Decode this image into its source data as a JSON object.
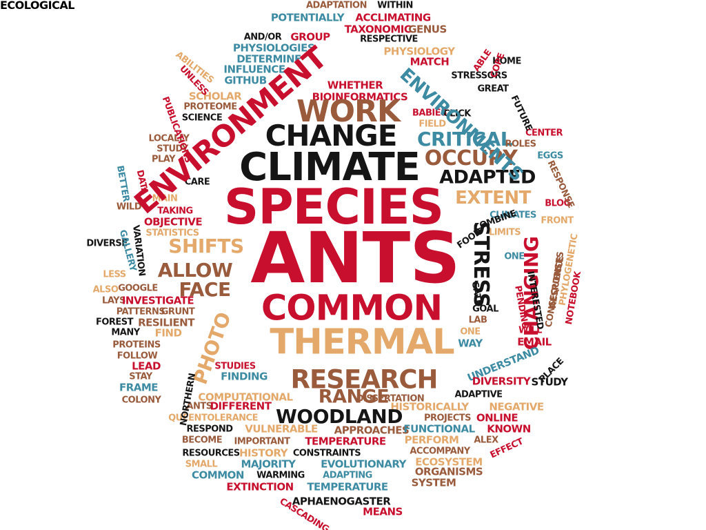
{
  "palette": {
    "red": "#c8102e",
    "black": "#151515",
    "brown": "#9a5a3c",
    "tan": "#e3a86a",
    "teal": "#3d8ba3"
  },
  "words": [
    {
      "text": "ADAPTATION",
      "color": "brown"
    },
    {
      "text": "WITHIN",
      "color": "black"
    },
    {
      "text": "POTENTIALLY",
      "color": "teal"
    },
    {
      "text": "ACCLIMATING",
      "color": "red"
    },
    {
      "text": "TAXONOMIC",
      "color": "red"
    },
    {
      "text": "GENUS",
      "color": "brown"
    },
    {
      "text": "AND/OR",
      "color": "black"
    },
    {
      "text": "GROUP",
      "color": "red"
    },
    {
      "text": "RESPECTIVE",
      "color": "black"
    },
    {
      "text": "PHYSIOLOGIES",
      "color": "teal"
    },
    {
      "text": "PHYSIOLOGY",
      "color": "tan"
    },
    {
      "text": "DETERMINE",
      "color": "teal"
    },
    {
      "text": "MATCH",
      "color": "red"
    },
    {
      "text": "HOME",
      "color": "black"
    },
    {
      "text": "INFLUENCE",
      "color": "teal"
    },
    {
      "text": "GITHUB",
      "color": "teal"
    },
    {
      "text": "STRESSORS",
      "color": "black"
    },
    {
      "text": "WHETHER",
      "color": "red"
    },
    {
      "text": "GREAT",
      "color": "black"
    },
    {
      "text": "SCHOLAR",
      "color": "tan"
    },
    {
      "text": "BIOINFORMATICS",
      "color": "red"
    },
    {
      "text": "PROTEOME",
      "color": "brown"
    },
    {
      "text": "WORK",
      "color": "brown"
    },
    {
      "text": "BABIES",
      "color": "red"
    },
    {
      "text": "CLICK",
      "color": "black"
    },
    {
      "text": "FIELD",
      "color": "tan"
    },
    {
      "text": "SCIENCE",
      "color": "black"
    },
    {
      "text": "LOCALLY",
      "color": "brown"
    },
    {
      "text": "CHANGE",
      "color": "black"
    },
    {
      "text": "CRITICAL",
      "color": "teal"
    },
    {
      "text": "CENTER",
      "color": "red"
    },
    {
      "text": "STUDY",
      "color": "brown"
    },
    {
      "text": "ROLES",
      "color": "brown"
    },
    {
      "text": "PLAY",
      "color": "brown"
    },
    {
      "text": "OCCUPY",
      "color": "brown"
    },
    {
      "text": "EGGS",
      "color": "teal"
    },
    {
      "text": "CLIMATE",
      "color": "black"
    },
    {
      "text": "ADAPTED",
      "color": "black"
    },
    {
      "text": "CARE",
      "color": "black"
    },
    {
      "text": "EXTENT",
      "color": "tan"
    },
    {
      "text": "MAIN",
      "color": "tan"
    },
    {
      "text": "BLOG",
      "color": "red"
    },
    {
      "text": "WILD",
      "color": "brown"
    },
    {
      "text": "SPECIES",
      "color": "red"
    },
    {
      "text": "TAKING",
      "color": "red"
    },
    {
      "text": "CLIMATES",
      "color": "teal"
    },
    {
      "text": "FRONT",
      "color": "tan"
    },
    {
      "text": "OBJECTIVE",
      "color": "red"
    },
    {
      "text": "COMBINE",
      "color": "black"
    },
    {
      "text": "LIMITS",
      "color": "tan"
    },
    {
      "text": "STATISTICS",
      "color": "tan"
    },
    {
      "text": "DIVERSE",
      "color": "black"
    },
    {
      "text": "FOOD",
      "color": "black"
    },
    {
      "text": "SHIFTS",
      "color": "tan"
    },
    {
      "text": "ANTS",
      "color": "red"
    },
    {
      "text": "STRESS",
      "color": "black"
    },
    {
      "text": "ONE",
      "color": "teal"
    },
    {
      "text": "ALLOW",
      "color": "brown"
    },
    {
      "text": "LESS",
      "color": "tan"
    },
    {
      "text": "GOOGLE",
      "color": "brown"
    },
    {
      "text": "ALSO",
      "color": "tan"
    },
    {
      "text": "FACE",
      "color": "brown"
    },
    {
      "text": "CHANGING",
      "color": "red"
    },
    {
      "text": "LAYS",
      "color": "brown"
    },
    {
      "text": "INVESTIGATE",
      "color": "red"
    },
    {
      "text": "COMMON",
      "color": "red"
    },
    {
      "text": "PATTERNS",
      "color": "brown"
    },
    {
      "text": "GRUNT",
      "color": "brown"
    },
    {
      "text": "GOAL",
      "color": "black"
    },
    {
      "text": "FOREST",
      "color": "black"
    },
    {
      "text": "RESILIENT",
      "color": "brown"
    },
    {
      "text": "LAB",
      "color": "brown"
    },
    {
      "text": "MANY",
      "color": "black"
    },
    {
      "text": "FIND",
      "color": "tan"
    },
    {
      "text": "ONE",
      "color": "tan"
    },
    {
      "text": "WILL",
      "color": "red"
    },
    {
      "text": "THERMAL",
      "color": "tan"
    },
    {
      "text": "WAY",
      "color": "teal"
    },
    {
      "text": "EMAIL",
      "color": "red"
    },
    {
      "text": "PROTEINS",
      "color": "brown"
    },
    {
      "text": "FOLLOW",
      "color": "brown"
    },
    {
      "text": "LEAD",
      "color": "red"
    },
    {
      "text": "STUDIES",
      "color": "red"
    },
    {
      "text": "UNDERSTAND",
      "color": "teal"
    },
    {
      "text": "PLACE",
      "color": "black"
    },
    {
      "text": "STAY",
      "color": "brown"
    },
    {
      "text": "FINDING",
      "color": "teal"
    },
    {
      "text": "RESEARCH",
      "color": "brown"
    },
    {
      "text": "DIVERSITY",
      "color": "red"
    },
    {
      "text": "STUDY",
      "color": "black"
    },
    {
      "text": "FRAME",
      "color": "teal"
    },
    {
      "text": "COMPUTATIONAL",
      "color": "tan"
    },
    {
      "text": "RANGE",
      "color": "brown"
    },
    {
      "text": "DISSERTATION",
      "color": "brown"
    },
    {
      "text": "ADAPTIVE",
      "color": "black"
    },
    {
      "text": "COLONY",
      "color": "brown"
    },
    {
      "text": "ANTS",
      "color": "brown"
    },
    {
      "text": "DIFFERENT",
      "color": "red"
    },
    {
      "text": "HISTORICALLY",
      "color": "tan"
    },
    {
      "text": "NEGATIVE",
      "color": "tan"
    },
    {
      "text": "WOODLAND",
      "color": "black"
    },
    {
      "text": "QUEEN",
      "color": "tan"
    },
    {
      "text": "TOLERANCE",
      "color": "tan"
    },
    {
      "text": "PROJECTS",
      "color": "brown"
    },
    {
      "text": "ONLINE",
      "color": "red"
    },
    {
      "text": "RESPOND",
      "color": "black"
    },
    {
      "text": "VULNERABLE",
      "color": "tan"
    },
    {
      "text": "APPROACHES",
      "color": "brown"
    },
    {
      "text": "FUNCTIONAL",
      "color": "teal"
    },
    {
      "text": "KNOWN",
      "color": "red"
    },
    {
      "text": "BECOME",
      "color": "brown"
    },
    {
      "text": "PERFORM",
      "color": "tan"
    },
    {
      "text": "ALEX",
      "color": "brown"
    },
    {
      "text": "IMPORTANT",
      "color": "brown"
    },
    {
      "text": "TEMPERATURE",
      "color": "red"
    },
    {
      "text": "ACCOMPANY",
      "color": "brown"
    },
    {
      "text": "RESOURCES",
      "color": "black"
    },
    {
      "text": "HISTORY",
      "color": "tan"
    },
    {
      "text": "CONSTRAINTS",
      "color": "black"
    },
    {
      "text": "ECOSYSTEM",
      "color": "tan"
    },
    {
      "text": "SMALL",
      "color": "tan"
    },
    {
      "text": "MAJORITY",
      "color": "teal"
    },
    {
      "text": "EVOLUTIONARY",
      "color": "teal"
    },
    {
      "text": "ORGANISMS",
      "color": "brown"
    },
    {
      "text": "COMMON",
      "color": "teal"
    },
    {
      "text": "WARMING",
      "color": "black"
    },
    {
      "text": "ADAPTING",
      "color": "teal"
    },
    {
      "text": "SYSTEM",
      "color": "brown"
    },
    {
      "text": "EXTINCTION",
      "color": "red"
    },
    {
      "text": "TEMPERATURE",
      "color": "teal"
    },
    {
      "text": "APHAENOGASTER",
      "color": "black"
    },
    {
      "text": "MEANS",
      "color": "red"
    },
    {
      "text": "EFFECT",
      "color": "red"
    },
    {
      "text": "ENVIRONMENT",
      "color": "red"
    },
    {
      "text": "ENVIRONMENTS",
      "color": "teal"
    },
    {
      "text": "ABILITIES",
      "color": "tan"
    },
    {
      "text": "UNLESS",
      "color": "red"
    },
    {
      "text": "PUBLICATIONS",
      "color": "red"
    },
    {
      "text": "BETTER",
      "color": "teal"
    },
    {
      "text": "DATA",
      "color": "red"
    },
    {
      "text": "GALLERY",
      "color": "teal"
    },
    {
      "text": "VARIATION",
      "color": "black"
    },
    {
      "text": "PHOTO",
      "color": "tan"
    },
    {
      "text": "NORTHERN",
      "color": "black"
    },
    {
      "text": "ABLE",
      "color": "red"
    },
    {
      "text": "COPE",
      "color": "red"
    },
    {
      "text": "FUTURE",
      "color": "black"
    },
    {
      "text": "RESPONSE",
      "color": "brown"
    },
    {
      "text": "PHYLOGENETIC",
      "color": "tan"
    },
    {
      "text": "CONSEQUENCE",
      "color": "brown"
    },
    {
      "text": "NOTEBOOK",
      "color": "red"
    },
    {
      "text": "INTERESTED",
      "color": "black"
    },
    {
      "text": "PENDING",
      "color": "red"
    },
    {
      "text": "GATE",
      "color": "black"
    },
    {
      "text": "CASCADING",
      "color": "red"
    },
    {
      "text": "RESPONSES",
      "color": "brown"
    },
    {
      "text": "ECOLOGICAL",
      "color": "tan"
    }
  ]
}
